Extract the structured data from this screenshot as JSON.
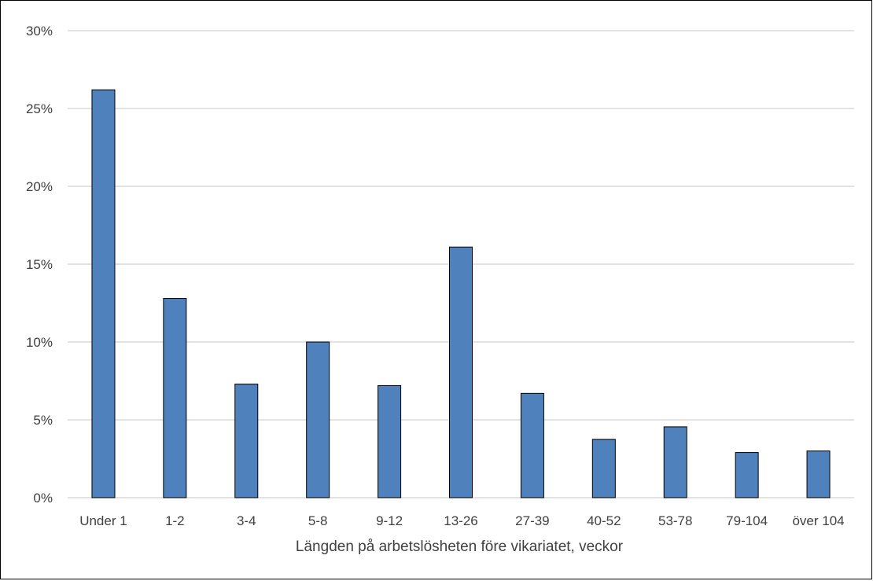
{
  "chart_data": {
    "type": "bar",
    "categories": [
      "Under 1",
      "1-2",
      "3-4",
      "5-8",
      "9-12",
      "13-26",
      "27-39",
      "40-52",
      "53-78",
      "79-104",
      "över 104"
    ],
    "values": [
      26.2,
      12.8,
      7.3,
      10.0,
      7.2,
      16.1,
      6.7,
      3.75,
      4.55,
      2.9,
      3.0
    ],
    "xlabel": "Längden på arbetslösheten före vikariatet, veckor",
    "ylabel": "",
    "ylim": [
      0,
      30
    ],
    "yticks": [
      0,
      5,
      10,
      15,
      20,
      25,
      30
    ],
    "ytick_labels": [
      "0%",
      "5%",
      "10%",
      "15%",
      "20%",
      "25%",
      "30%"
    ],
    "grid": true,
    "legend": "none",
    "bar_color": "#4f81bd",
    "bar_edge_color": "#000000",
    "grid_color": "#d9d9d9"
  }
}
